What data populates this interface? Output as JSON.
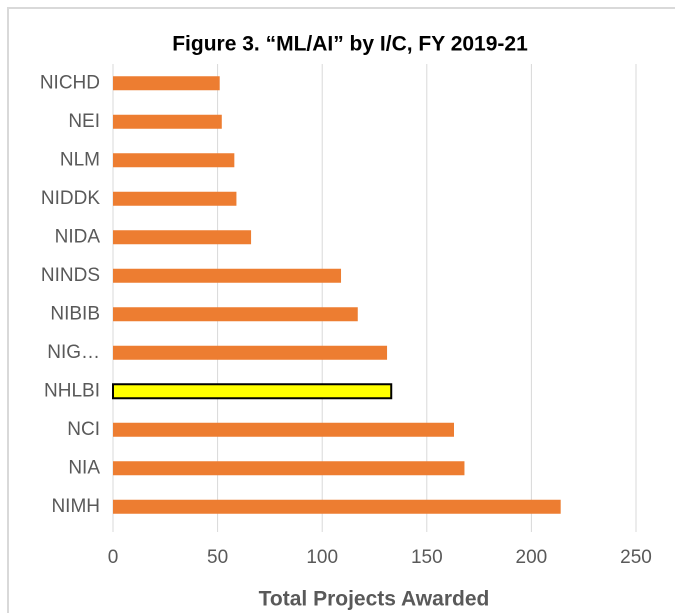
{
  "chart_data": {
    "type": "barh",
    "title": "Figure 3. “ML/AI” by I/C, FY 2019-21",
    "categories": [
      "NICHD",
      "NEI",
      "NLM",
      "NIDDK",
      "NIDA",
      "NINDS",
      "NIBIB",
      "NIG…",
      "NHLBI",
      "NCI",
      "NIA",
      "NIMH"
    ],
    "values": [
      51,
      52,
      58,
      59,
      66,
      109,
      117,
      131,
      133,
      163,
      168,
      214
    ],
    "colors": [
      "#ed7d31",
      "#ed7d31",
      "#ed7d31",
      "#ed7d31",
      "#ed7d31",
      "#ed7d31",
      "#ed7d31",
      "#ed7d31",
      "#ffff00",
      "#ed7d31",
      "#ed7d31",
      "#ed7d31"
    ],
    "edge_colors": [
      null,
      null,
      null,
      null,
      null,
      null,
      null,
      null,
      "#000000",
      null,
      null,
      null
    ],
    "xlabel": "Total Projects Awarded",
    "xlim": [
      0,
      250
    ],
    "xticks": [
      0,
      50,
      100,
      150,
      200,
      250
    ],
    "grid": true
  }
}
